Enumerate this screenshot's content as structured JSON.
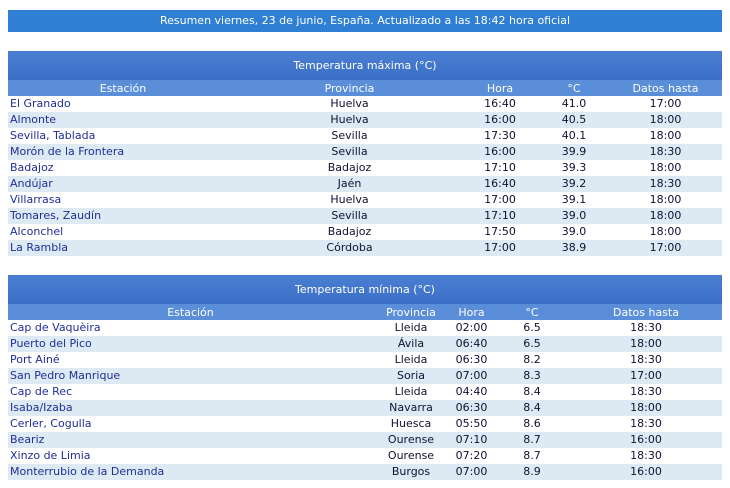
{
  "summary": "Resumen viernes, 23 de junio, España. Actualizado a las 18:42 hora oficial",
  "max_section": {
    "title": "Temperatura máxima (°C)",
    "headers": [
      "Estación",
      "Provincia",
      "Hora",
      "°C",
      "Datos hasta"
    ],
    "rows": [
      [
        "El Granado",
        "Huelva",
        "16:40",
        "41.0",
        "17:00"
      ],
      [
        "Almonte",
        "Huelva",
        "16:00",
        "40.5",
        "18:00"
      ],
      [
        "Sevilla, Tablada",
        "Sevilla",
        "17:30",
        "40.1",
        "18:00"
      ],
      [
        "Morón de la Frontera",
        "Sevilla",
        "16:00",
        "39.9",
        "18:30"
      ],
      [
        "Badajoz",
        "Badajoz",
        "17:10",
        "39.3",
        "18:00"
      ],
      [
        "Andújar",
        "Jaén",
        "16:40",
        "39.2",
        "18:30"
      ],
      [
        "Villarrasa",
        "Huelva",
        "17:00",
        "39.1",
        "18:00"
      ],
      [
        "Tomares, Zaudín",
        "Sevilla",
        "17:10",
        "39.0",
        "18:00"
      ],
      [
        "Alconchel",
        "Badajoz",
        "17:50",
        "39.0",
        "18:00"
      ],
      [
        "La Rambla",
        "Córdoba",
        "17:00",
        "38.9",
        "17:00"
      ]
    ]
  },
  "min_section": {
    "title": "Temperatura mínima (°C)",
    "headers": [
      "Estación",
      "Provincia",
      "Hora",
      "°C",
      "Datos hasta"
    ],
    "rows": [
      [
        "Cap de Vaquèira",
        "Lleida",
        "02:00",
        "6.5",
        "18:30"
      ],
      [
        "Puerto del Pico",
        "Ávila",
        "06:40",
        "6.5",
        "18:00"
      ],
      [
        "Port Ainé",
        "Lleida",
        "06:30",
        "8.2",
        "18:30"
      ],
      [
        "San Pedro Manrique",
        "Soria",
        "07:00",
        "8.3",
        "17:00"
      ],
      [
        "Cap de Rec",
        "Lleida",
        "04:40",
        "8.4",
        "18:30"
      ],
      [
        "Isaba/Izaba",
        "Navarra",
        "06:30",
        "8.4",
        "18:00"
      ],
      [
        "Cerler, Cogulla",
        "Huesca",
        "05:50",
        "8.6",
        "18:30"
      ],
      [
        "Beariz",
        "Ourense",
        "07:10",
        "8.7",
        "16:00"
      ],
      [
        "Xinzo de Limia",
        "Ourense",
        "07:20",
        "8.7",
        "18:30"
      ],
      [
        "Monterrubio de la Demanda",
        "Burgos",
        "07:00",
        "8.9",
        "16:00"
      ]
    ]
  },
  "colors": {
    "summary_bg": "#2f7fd4",
    "title_bg": "#4a7fd3",
    "header_bg": "#5a8ed9",
    "row_alt": "#dde9f3",
    "station_text": "#1f2f96"
  }
}
